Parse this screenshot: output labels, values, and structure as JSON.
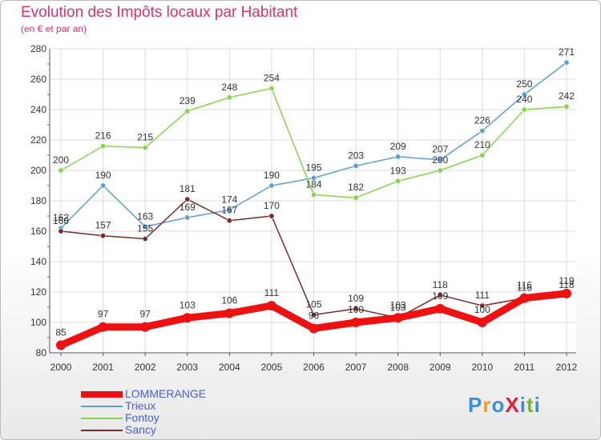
{
  "title": "Evolution des Impôts locaux par Habitant",
  "subtitle": "(en € et par an)",
  "logo": {
    "text": "ProXiti",
    "colors": [
      "#3a8fd8",
      "#f0a020",
      "#3a8fd8",
      "#e02040",
      "#3a8fd8",
      "#7ab828",
      "#3a8fd8"
    ]
  },
  "chart_data": {
    "type": "line",
    "x": [
      "2000",
      "2001",
      "2002",
      "2003",
      "2004",
      "2005",
      "2006",
      "2007",
      "2008",
      "2009",
      "2010",
      "2011",
      "2012"
    ],
    "ylim": [
      80,
      280
    ],
    "yticks": [
      "80",
      "100",
      "120",
      "140",
      "160",
      "180",
      "200",
      "220",
      "240",
      "260",
      "280"
    ],
    "grid": true,
    "legend": "bottom-left",
    "series": [
      {
        "name": "LOMMERANGE",
        "color": "#ee1111",
        "emphasis": true,
        "values": [
          85,
          97,
          97,
          103,
          106,
          111,
          96,
          100,
          103,
          109,
          100,
          116,
          119
        ],
        "labels": [
          "85",
          "97",
          "97",
          "103",
          "106",
          "111",
          "96",
          "100",
          "103",
          "109",
          "100",
          "116",
          "119"
        ]
      },
      {
        "name": "Trieux",
        "color": "#5aa0d8",
        "values": [
          162,
          190,
          163,
          169,
          174,
          190,
          195,
          203,
          209,
          207,
          226,
          250,
          271
        ],
        "labels": [
          "162",
          "190",
          "163",
          "169",
          "174",
          "190",
          "195",
          "203",
          "209",
          "207",
          "226",
          "250",
          "271"
        ]
      },
      {
        "name": "Fontoy",
        "color": "#88d44a",
        "values": [
          200,
          216,
          215,
          239,
          248,
          254,
          184,
          182,
          193,
          200,
          210,
          240,
          242
        ],
        "labels": [
          "200",
          "216",
          "215",
          "239",
          "248",
          "254",
          "184",
          "182",
          "193",
          "200",
          "210",
          "240",
          "242"
        ]
      },
      {
        "name": "Sancy",
        "color": "#7a2a2a",
        "values": [
          160,
          157,
          155,
          181,
          167,
          170,
          105,
          109,
          103,
          118,
          111,
          116,
          118
        ],
        "labels": [
          "160",
          "157",
          "155",
          "181",
          "167",
          "170",
          "105",
          "109",
          "103",
          "118",
          "111",
          "116",
          "118"
        ]
      }
    ]
  }
}
